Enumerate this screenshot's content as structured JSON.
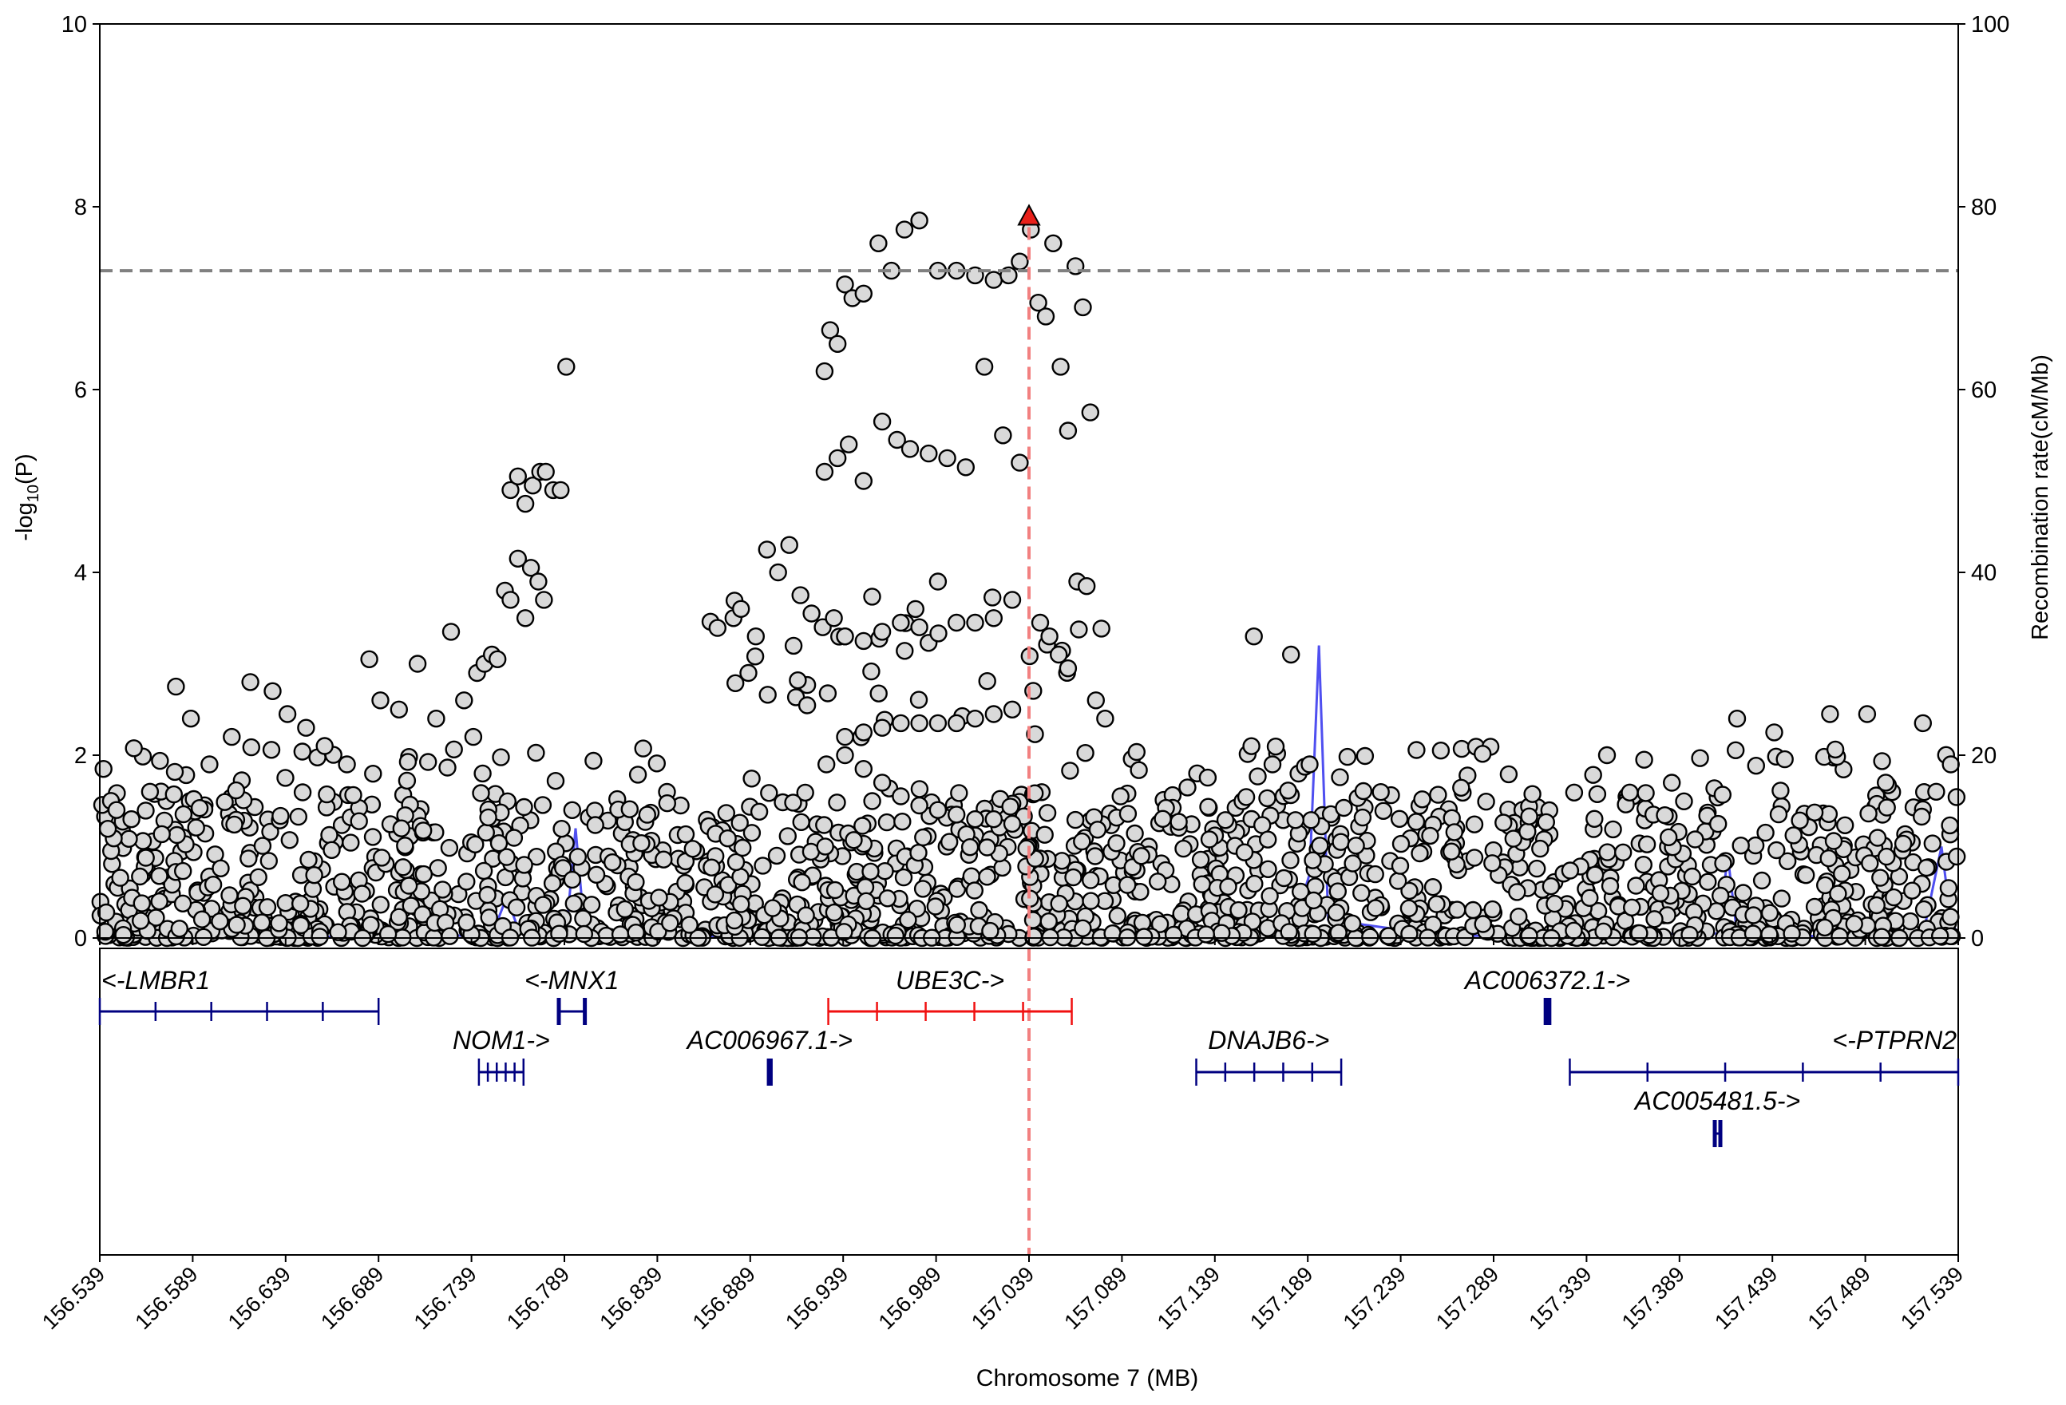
{
  "chart_data": {
    "type": "scatter",
    "plot_kind": "regional association plot",
    "y_left_label_main": "-log",
    "y_left_label_sub": "10",
    "y_left_label_tail": "(P)",
    "y_right_label": "Recombination rate(cM/Mb)",
    "xlabel": "Chromosome 7 (MB)",
    "xlim": [
      156.539,
      157.539
    ],
    "ylim_left": [
      0,
      10
    ],
    "ylim_right": [
      0,
      100
    ],
    "x_ticks": [
      "156.539",
      "156.589",
      "156.639",
      "156.689",
      "156.739",
      "156.789",
      "156.839",
      "156.889",
      "156.939",
      "156.989",
      "157.039",
      "157.089",
      "157.139",
      "157.189",
      "157.239",
      "157.289",
      "157.339",
      "157.389",
      "157.439",
      "157.489",
      "157.539"
    ],
    "y_left_ticks": [
      "0",
      "2",
      "4",
      "6",
      "8",
      "10"
    ],
    "y_right_ticks": [
      "0",
      "20",
      "40",
      "60",
      "80",
      "100"
    ],
    "significance_threshold": 7.3,
    "lead_snp": {
      "position": 157.039,
      "neglog10p": 7.9
    },
    "colors": {
      "points_fill": "#d9d9d9",
      "points_edge": "#000000",
      "lead_snp": "#e8201a",
      "threshold_line": "#808080",
      "lead_line": "#f28080",
      "recombination": "#4f4ff0",
      "gene": "#000080",
      "highlighted_gene": "#f01010"
    },
    "recombination_rate": {
      "x": [
        156.539,
        156.62,
        156.68,
        156.7,
        156.75,
        156.758,
        156.765,
        156.78,
        156.79,
        156.795,
        156.8,
        156.84,
        156.88,
        156.9,
        156.95,
        157.0,
        157.05,
        157.1,
        157.15,
        157.18,
        157.19,
        157.195,
        157.2,
        157.26,
        157.3,
        157.36,
        157.41,
        157.415,
        157.42,
        157.45,
        157.52,
        157.53,
        157.535,
        157.539
      ],
      "y": [
        0.4,
        0.2,
        0.1,
        0.2,
        0.3,
        4.5,
        0.5,
        0.3,
        0.5,
        12,
        0.4,
        0.2,
        0.2,
        0.3,
        0.1,
        0.1,
        0.1,
        0.2,
        0.4,
        0.3,
        7,
        32,
        2,
        0.3,
        0.2,
        0.4,
        0.5,
        9,
        0.4,
        0.2,
        0.3,
        10,
        2,
        0.3
      ]
    },
    "point_clusters": [
      {
        "x": [
          156.541,
          156.545,
          156.548,
          156.556,
          156.566,
          156.58,
          156.588,
          156.598,
          156.61,
          156.62,
          156.632,
          156.64,
          156.65,
          156.66,
          156.672,
          156.684,
          156.69,
          156.7,
          156.71,
          156.72,
          156.728,
          156.735,
          156.74,
          156.745
        ],
        "y": [
          1.85,
          1.5,
          1.4,
          1.3,
          1.6,
          2.75,
          2.4,
          1.9,
          2.2,
          2.8,
          2.7,
          2.45,
          2.3,
          2.1,
          1.9,
          3.05,
          2.6,
          2.5,
          3.0,
          2.4,
          3.35,
          2.6,
          2.2,
          1.8
        ]
      },
      {
        "x": [
          156.742,
          156.746,
          156.75,
          156.753,
          156.757,
          156.76,
          156.764,
          156.768,
          156.771,
          156.775,
          156.778
        ],
        "y": [
          2.9,
          3.0,
          3.1,
          3.05,
          3.8,
          3.7,
          4.15,
          3.5,
          4.05,
          3.9,
          3.7
        ]
      },
      {
        "x": [
          156.76,
          156.764,
          156.768,
          156.772,
          156.776,
          156.779,
          156.783,
          156.787,
          156.79
        ],
        "y": [
          4.9,
          5.05,
          4.75,
          4.95,
          5.1,
          5.1,
          4.9,
          4.9,
          6.25
        ]
      },
      {
        "x": [
          156.88,
          156.884,
          156.888,
          156.892,
          156.898,
          156.904,
          156.91,
          156.916,
          156.922,
          156.928,
          156.934,
          156.94
        ],
        "y": [
          3.5,
          3.6,
          2.9,
          3.3,
          4.25,
          4.0,
          4.3,
          3.75,
          3.55,
          3.4,
          3.5,
          3.3
        ]
      },
      {
        "x": [
          156.929,
          156.932,
          156.936,
          156.94,
          156.944,
          156.95,
          156.958,
          156.965,
          156.972,
          156.98,
          156.99,
          157.0,
          157.01,
          157.02,
          157.028,
          157.034
        ],
        "y": [
          6.2,
          6.65,
          6.5,
          7.15,
          7.0,
          7.05,
          7.6,
          7.3,
          7.75,
          7.85,
          7.3,
          7.3,
          7.25,
          7.2,
          7.25,
          7.4
        ]
      },
      {
        "x": [
          156.929,
          156.936,
          156.942,
          156.95,
          156.96,
          156.968,
          156.975,
          156.985,
          156.995,
          157.005,
          157.015,
          157.025,
          157.034
        ],
        "y": [
          5.1,
          5.25,
          5.4,
          5.0,
          5.65,
          5.45,
          5.35,
          5.3,
          5.25,
          5.15,
          6.25,
          5.5,
          5.2
        ]
      },
      {
        "x": [
          157.04,
          157.044,
          157.048,
          157.052,
          157.056,
          157.06,
          157.064,
          157.068,
          157.072
        ],
        "y": [
          7.75,
          6.95,
          6.8,
          7.6,
          6.25,
          5.55,
          7.35,
          6.9,
          5.75
        ]
      },
      {
        "x": [
          157.045,
          157.05,
          157.055,
          157.06,
          157.065,
          157.07,
          157.075,
          157.08
        ],
        "y": [
          3.45,
          3.3,
          3.1,
          2.95,
          3.9,
          3.85,
          2.6,
          2.4
        ]
      },
      {
        "x": [
          156.94,
          156.95,
          156.96,
          156.97,
          156.98,
          156.99,
          157.0,
          157.01,
          157.02,
          157.03
        ],
        "y": [
          3.3,
          3.25,
          3.35,
          3.45,
          3.4,
          3.9,
          3.45,
          3.45,
          3.5,
          3.7
        ]
      },
      {
        "x": [
          156.94,
          156.95,
          156.96,
          156.97,
          156.98,
          156.99,
          157.0,
          157.01,
          157.02,
          157.03
        ],
        "y": [
          2.2,
          2.25,
          2.3,
          2.35,
          2.35,
          2.35,
          2.35,
          2.4,
          2.45,
          2.5
        ]
      },
      {
        "x": [
          156.93,
          156.94,
          156.95,
          156.96,
          156.97,
          156.98,
          156.99,
          157.0,
          157.01,
          157.02,
          157.03
        ],
        "y": [
          1.9,
          2.0,
          1.85,
          1.7,
          1.55,
          1.45,
          1.4,
          1.35,
          1.3,
          1.3,
          1.25
        ]
      },
      {
        "x": [
          157.16,
          157.17,
          157.18,
          157.19
        ],
        "y": [
          3.3,
          1.9,
          3.1,
          1.9
        ]
      },
      {
        "x": [
          157.35,
          157.37,
          157.42,
          157.44,
          157.47,
          157.49,
          157.5,
          157.52,
          157.535
        ],
        "y": [
          2.0,
          1.95,
          2.4,
          2.25,
          2.45,
          2.45,
          1.7,
          2.35,
          1.9
        ]
      }
    ],
    "genes": [
      {
        "name": "<-LMBR1",
        "row": 0,
        "start": 156.539,
        "end": 156.689,
        "color": "gene"
      },
      {
        "name": "<-MNX1",
        "row": 0,
        "start": 156.786,
        "end": 156.8,
        "color": "gene"
      },
      {
        "name": "UBE3C->",
        "row": 0,
        "start": 156.931,
        "end": 157.062,
        "color": "highlighted_gene"
      },
      {
        "name": "AC006372.1->",
        "row": 0,
        "start": 157.317,
        "end": 157.319,
        "color": "gene"
      },
      {
        "name": "NOM1->",
        "row": 1,
        "start": 156.743,
        "end": 156.767,
        "color": "gene"
      },
      {
        "name": "AC006967.1->",
        "row": 1,
        "start": 156.899,
        "end": 156.9,
        "color": "gene"
      },
      {
        "name": "DNAJB6->",
        "row": 1,
        "start": 157.129,
        "end": 157.207,
        "color": "gene"
      },
      {
        "name": "<-PTPRN2",
        "row": 1,
        "start": 157.33,
        "end": 157.539,
        "color": "gene"
      },
      {
        "name": "AC005481.5->",
        "row": 2,
        "start": 157.408,
        "end": 157.411,
        "color": "gene"
      }
    ]
  }
}
